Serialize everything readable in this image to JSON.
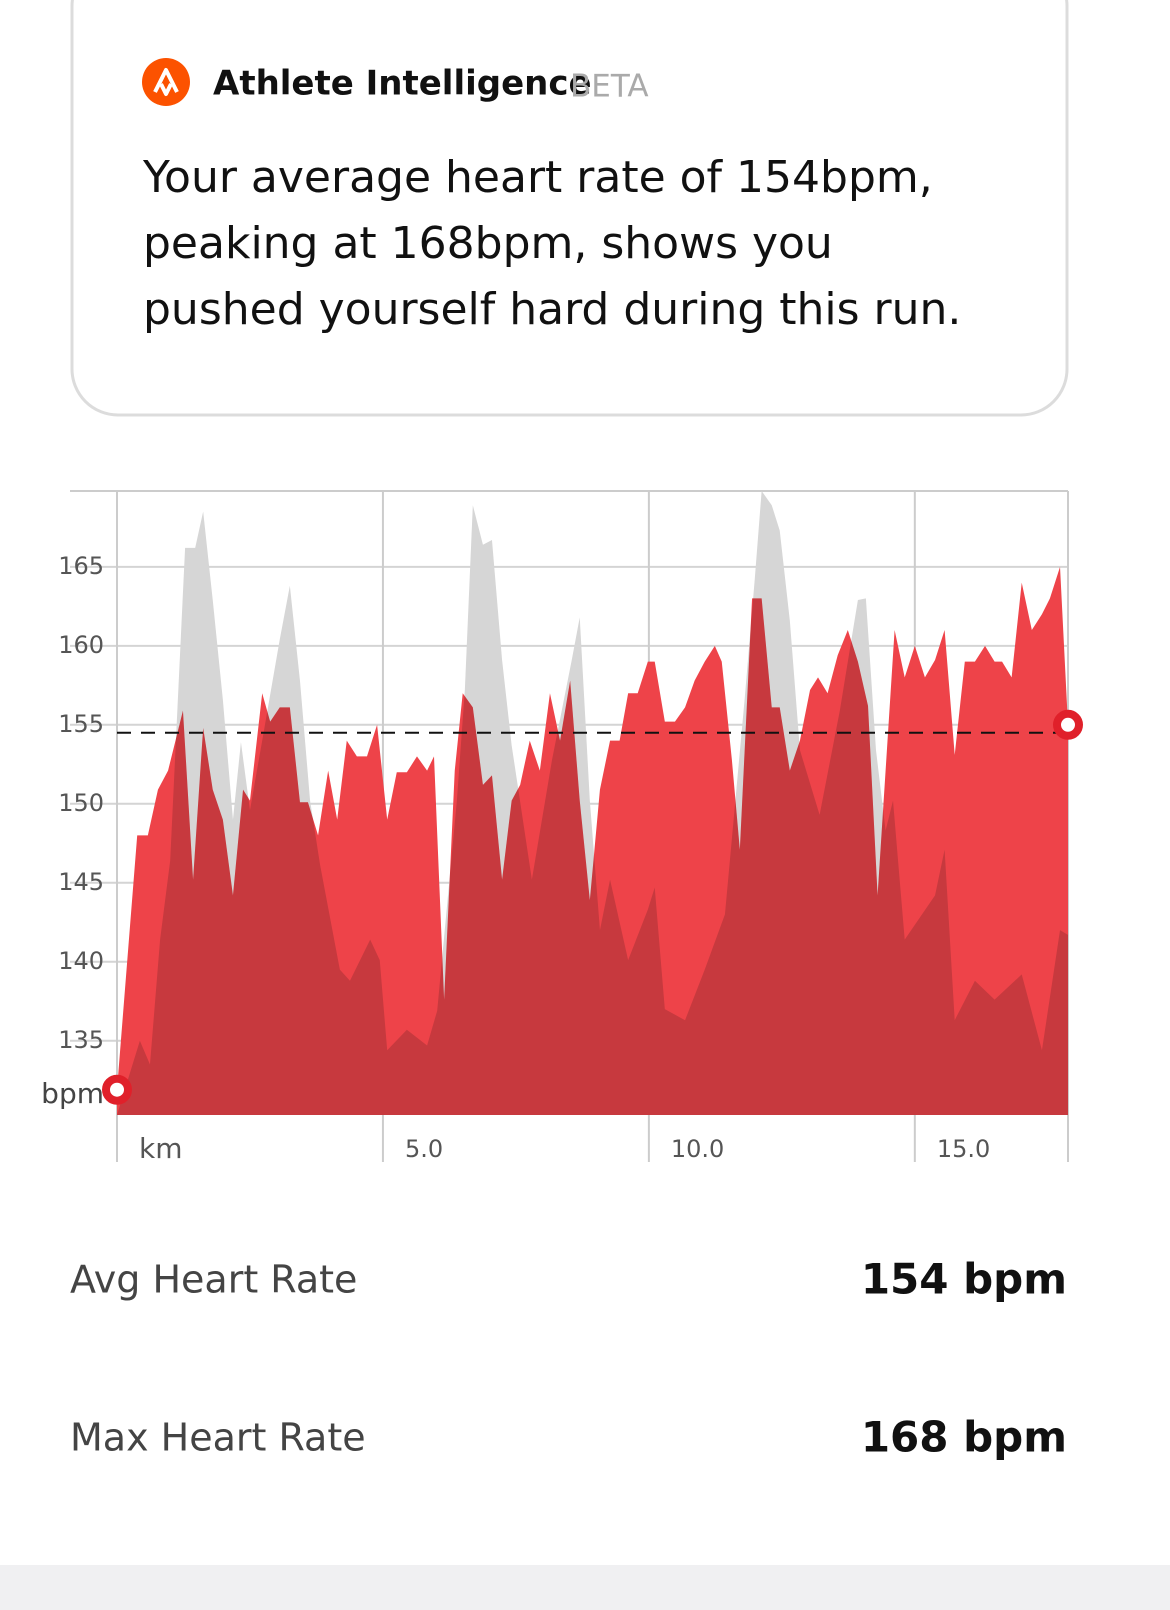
{
  "card": {
    "title": "Athlete Intelligence",
    "badge": "BETA",
    "lines": [
      "Your average heart rate of 154bpm,",
      "peaking at 168bpm, shows you",
      "pushed yourself hard during this run."
    ]
  },
  "chart_data": {
    "type": "area",
    "y_unit": "bpm",
    "xlim": [
      0,
      17.88
    ],
    "ylim": [
      130.3,
      169.8
    ],
    "xticks": [
      {
        "value": 0,
        "label": "km"
      },
      {
        "value": 5,
        "label": "5.0"
      },
      {
        "value": 10,
        "label": "10.0"
      },
      {
        "value": 15,
        "label": "15.0"
      }
    ],
    "yticks": [
      135,
      140,
      145,
      150,
      155,
      160,
      165
    ],
    "grid": true,
    "avg_line": 154.5,
    "series": [
      {
        "color": "#d6d6d6",
        "x": [
          0,
          0.43,
          0.62,
          0.81,
          1.0,
          1.28,
          1.47,
          1.62,
          1.8,
          1.99,
          2.18,
          2.33,
          2.5,
          2.73,
          3.06,
          3.25,
          3.44,
          3.63,
          3.82,
          4.19,
          4.38,
          4.76,
          4.94,
          5.08,
          5.45,
          5.83,
          6.02,
          6.39,
          6.54,
          6.69,
          6.88,
          7.05,
          7.24,
          7.42,
          7.8,
          8.18,
          8.55,
          8.7,
          8.89,
          9.08,
          9.27,
          9.61,
          9.98,
          10.11,
          10.3,
          10.68,
          11.05,
          11.43,
          11.8,
          11.99,
          12.12,
          12.31,
          12.46,
          12.65,
          12.84,
          13.21,
          13.59,
          13.93,
          14.08,
          14.27,
          14.45,
          14.59,
          14.81,
          15.38,
          15.56,
          15.75,
          16.13,
          16.5,
          17.01,
          17.39,
          17.73,
          17.88
        ],
        "values": [
          130.3,
          135.0,
          133.5,
          141.4,
          146.4,
          166.2,
          166.2,
          168.5,
          162.9,
          156.6,
          149.0,
          153.9,
          149.6,
          154.0,
          160.4,
          163.8,
          157.8,
          150.2,
          146.1,
          139.5,
          138.8,
          141.4,
          140.1,
          134.4,
          135.7,
          134.7,
          136.9,
          150.2,
          157.2,
          168.9,
          166.4,
          166.7,
          159.1,
          153.7,
          145.2,
          152.8,
          159.1,
          161.8,
          150.2,
          142.0,
          145.2,
          140.1,
          143.3,
          144.7,
          137.0,
          136.3,
          139.5,
          143.0,
          156.6,
          164.2,
          169.8,
          168.9,
          167.3,
          161.6,
          153.4,
          149.3,
          155.9,
          162.9,
          163.0,
          153.4,
          148.3,
          150.2,
          141.4,
          144.2,
          147.1,
          136.3,
          138.8,
          137.6,
          139.2,
          134.4,
          142.0,
          141.7
        ]
      },
      {
        "color": "#ee4349",
        "x": [
          0,
          0.38,
          0.58,
          0.77,
          0.96,
          1.24,
          1.43,
          1.62,
          1.8,
          1.99,
          2.18,
          2.37,
          2.5,
          2.73,
          2.88,
          3.06,
          3.25,
          3.44,
          3.59,
          3.78,
          3.97,
          4.14,
          4.32,
          4.51,
          4.7,
          4.89,
          5.08,
          5.26,
          5.45,
          5.64,
          5.83,
          5.96,
          6.15,
          6.35,
          6.5,
          6.69,
          6.88,
          7.05,
          7.24,
          7.42,
          7.58,
          7.76,
          7.95,
          8.14,
          8.33,
          8.52,
          8.7,
          8.89,
          9.08,
          9.27,
          9.45,
          9.61,
          9.79,
          9.98,
          10.11,
          10.3,
          10.49,
          10.68,
          10.86,
          11.05,
          11.24,
          11.37,
          11.56,
          11.71,
          11.94,
          12.12,
          12.31,
          12.46,
          12.65,
          12.84,
          13.03,
          13.18,
          13.36,
          13.55,
          13.74,
          13.93,
          14.12,
          14.3,
          14.62,
          14.81,
          15.0,
          15.19,
          15.38,
          15.56,
          15.75,
          15.94,
          16.13,
          16.32,
          16.5,
          16.64,
          16.82,
          17.01,
          17.2,
          17.39,
          17.54,
          17.73,
          17.88
        ],
        "values": [
          131.9,
          148,
          148,
          150.9,
          152.1,
          155.9,
          145.2,
          154.8,
          150.9,
          149,
          144.2,
          150.9,
          150.2,
          157,
          155.2,
          156.1,
          156.1,
          150.1,
          150.1,
          148,
          152.1,
          149,
          154,
          153,
          153,
          155,
          149,
          152,
          152,
          153,
          152.1,
          153,
          137.6,
          152.1,
          157,
          156.1,
          151.2,
          151.8,
          145.2,
          150.2,
          151.2,
          154,
          152.1,
          157,
          154,
          157.8,
          150.2,
          143.9,
          150.9,
          154,
          154,
          157,
          157,
          159,
          159,
          155.2,
          155.2,
          156.1,
          157.8,
          159,
          160,
          159,
          152.8,
          147.1,
          163,
          163,
          156.1,
          156.1,
          152.1,
          154,
          157.2,
          158,
          157,
          159.4,
          161,
          159,
          156.2,
          144.2,
          161,
          158,
          160,
          158,
          159.1,
          161,
          153.1,
          159,
          159,
          160,
          159,
          159,
          158,
          164,
          161,
          162,
          163,
          165,
          155.0
        ]
      }
    ]
  },
  "stats": [
    {
      "label": "Avg Heart Rate",
      "value": "154 bpm"
    },
    {
      "label": "Max Heart Rate",
      "value": "168 bpm"
    }
  ]
}
